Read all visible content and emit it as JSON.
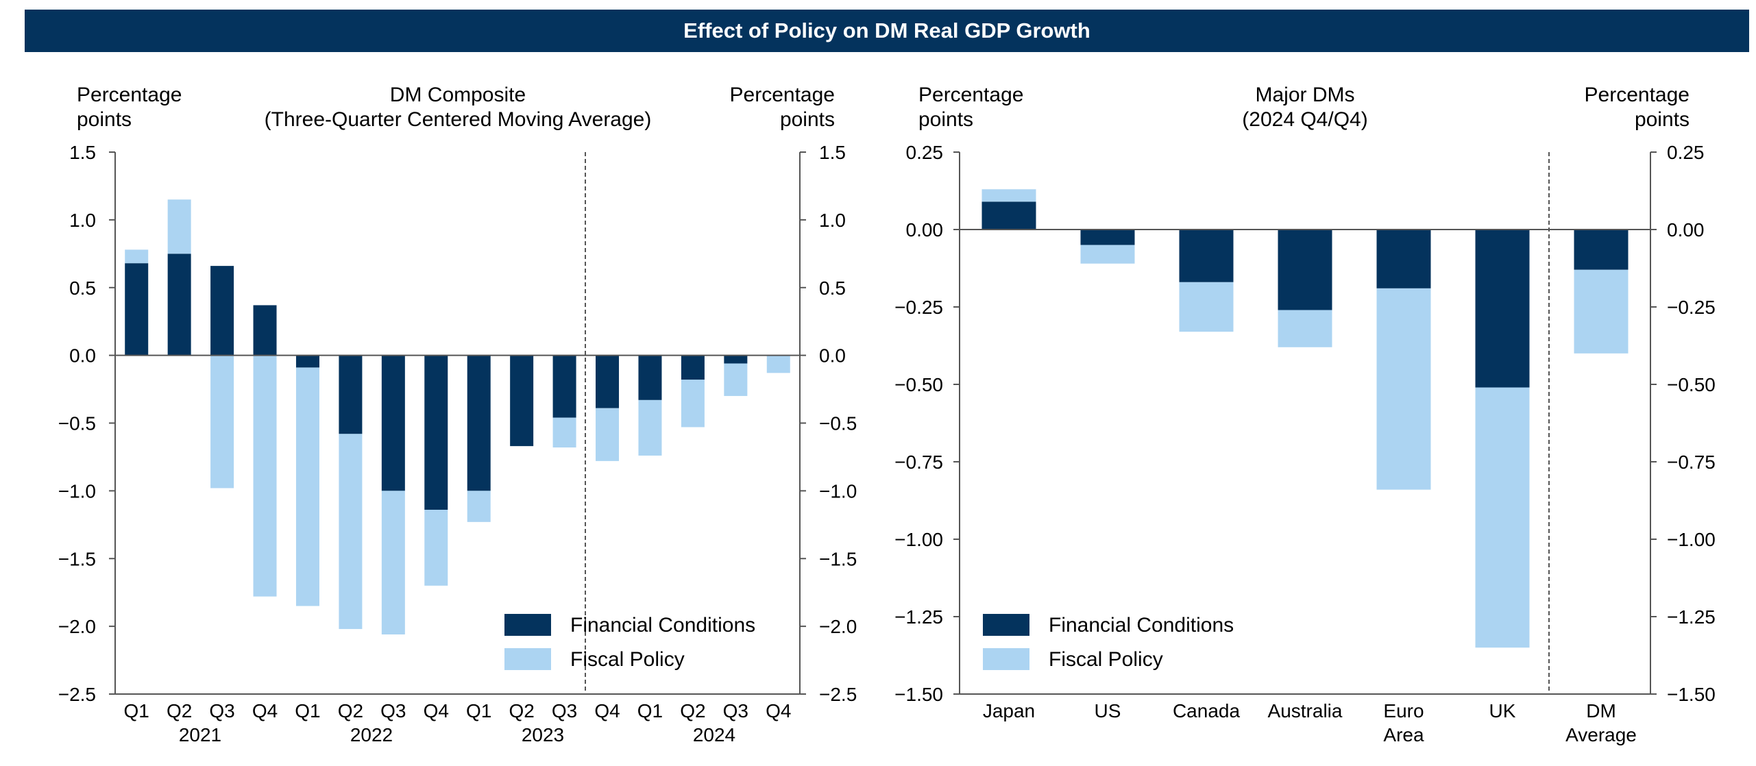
{
  "header": {
    "title": "Effect of Policy on DM Real GDP Growth"
  },
  "colors": {
    "financial": "#04335d",
    "fiscal": "#acd4f2",
    "banner": "#04335d"
  },
  "chart_data": [
    {
      "type": "bar",
      "stacked": true,
      "title_lines": [
        "DM Composite",
        "(Three-Quarter Centered Moving Average)"
      ],
      "ylabel_left": [
        "Percentage",
        "points"
      ],
      "ylabel_right": [
        "Percentage",
        "points"
      ],
      "ylim": [
        -2.5,
        1.5
      ],
      "yticks": [
        "1.5",
        "1.0",
        "0.5",
        "0.0",
        "−0.5",
        "−1.0",
        "−1.5",
        "−2.0",
        "−2.5"
      ],
      "categories": [
        "Q1",
        "Q2",
        "Q3",
        "Q4",
        "Q1",
        "Q2",
        "Q3",
        "Q4",
        "Q1",
        "Q2",
        "Q3",
        "Q4",
        "Q1",
        "Q2",
        "Q3",
        "Q4"
      ],
      "year_labels": [
        "2021",
        "2022",
        "2023",
        "2024"
      ],
      "series": [
        {
          "name": "Financial Conditions",
          "values": [
            0.68,
            0.75,
            0.66,
            0.37,
            -0.09,
            -0.58,
            -1.0,
            -1.14,
            -1.0,
            -0.67,
            -0.46,
            -0.39,
            -0.33,
            -0.18,
            -0.06,
            0.0
          ]
        },
        {
          "name": "Fiscal Policy",
          "values": [
            0.1,
            0.4,
            -0.98,
            -1.78,
            -1.76,
            -1.44,
            -1.06,
            -0.56,
            -0.23,
            0.0,
            -0.22,
            -0.39,
            -0.41,
            -0.35,
            -0.24,
            -0.13
          ]
        }
      ],
      "legend": [
        "Financial Conditions",
        "Fiscal Policy"
      ],
      "legend_position": "bottom-right",
      "grid": false
    },
    {
      "type": "bar",
      "stacked": true,
      "title_lines": [
        "Major DMs",
        "(2024 Q4/Q4)"
      ],
      "ylabel_left": [
        "Percentage",
        "points"
      ],
      "ylabel_right": [
        "Percentage",
        "points"
      ],
      "ylim": [
        -1.5,
        0.25
      ],
      "yticks": [
        "0.25",
        "0.00",
        "−0.25",
        "−0.50",
        "−0.75",
        "−1.00",
        "−1.25",
        "−1.50"
      ],
      "categories": [
        [
          "Japan"
        ],
        [
          "US"
        ],
        [
          "Canada"
        ],
        [
          "Australia"
        ],
        [
          "Euro",
          "Area"
        ],
        [
          "UK"
        ],
        [
          "DM",
          "Average"
        ]
      ],
      "series": [
        {
          "name": "Financial Conditions",
          "values": [
            0.09,
            -0.05,
            -0.17,
            -0.26,
            -0.19,
            -0.51,
            -0.13
          ]
        },
        {
          "name": "Fiscal Policy",
          "values": [
            0.04,
            -0.06,
            -0.16,
            -0.12,
            -0.65,
            -0.84,
            -0.27
          ]
        }
      ],
      "legend": [
        "Financial Conditions",
        "Fiscal Policy"
      ],
      "legend_position": "bottom-left",
      "grid": false
    }
  ]
}
